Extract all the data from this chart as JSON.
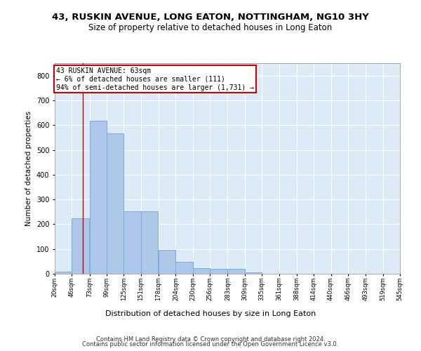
{
  "title": "43, RUSKIN AVENUE, LONG EATON, NOTTINGHAM, NG10 3HY",
  "subtitle": "Size of property relative to detached houses in Long Eaton",
  "xlabel": "Distribution of detached houses by size in Long Eaton",
  "ylabel": "Number of detached properties",
  "bar_color": "#aec6e8",
  "bar_edge_color": "#7aabdb",
  "background_color": "#ddeaf7",
  "grid_color": "#ffffff",
  "annotation_line_color": "#cc0000",
  "annotation_box_color": "#cc0000",
  "annotation_title": "43 RUSKIN AVENUE: 63sqm",
  "annotation_line2": "← 6% of detached houses are smaller (111)",
  "annotation_line3": "94% of semi-detached houses are larger (1,731) →",
  "property_size": 63,
  "bin_edges": [
    20,
    46,
    73,
    99,
    125,
    151,
    178,
    204,
    230,
    256,
    283,
    309,
    335,
    361,
    388,
    414,
    440,
    466,
    493,
    519,
    545
  ],
  "bin_counts": [
    8,
    224,
    617,
    568,
    252,
    252,
    97,
    48,
    22,
    21,
    20,
    6,
    0,
    0,
    0,
    0,
    0,
    0,
    0,
    0
  ],
  "ylim": [
    0,
    850
  ],
  "yticks": [
    0,
    100,
    200,
    300,
    400,
    500,
    600,
    700,
    800
  ],
  "footer_line1": "Contains HM Land Registry data © Crown copyright and database right 2024.",
  "footer_line2": "Contains public sector information licensed under the Open Government Licence v3.0."
}
